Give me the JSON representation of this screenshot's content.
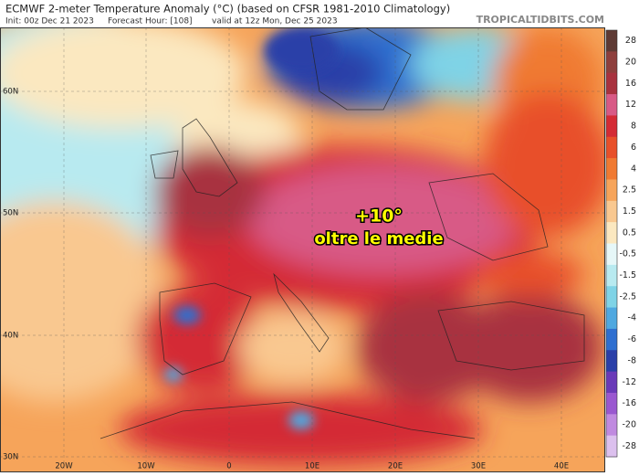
{
  "header": {
    "title": "ECMWF 2-meter Temperature Anomaly (°C) (based on CFSR 1981-2010 Climatology)",
    "init": "Init: 00z Dec 21 2023",
    "forecast_hour": "Forecast Hour: [108]",
    "valid": "valid at 12z Mon, Dec 25 2023",
    "watermark": "TROPICALTIDBITS.COM"
  },
  "annotation": {
    "line1": "+10°",
    "line2": "oltre le medie"
  },
  "lat_labels": [
    "60N",
    "50N",
    "40N",
    "30N"
  ],
  "lon_labels": [
    "20W",
    "10W",
    "0",
    "10E",
    "20E",
    "30E",
    "40E"
  ],
  "colorbar": [
    {
      "label": 28,
      "color": "#5e3a34"
    },
    {
      "label": 20,
      "color": "#8e3f3d"
    },
    {
      "label": 16,
      "color": "#a8323f"
    },
    {
      "label": 12,
      "color": "#d85a86"
    },
    {
      "label": 8,
      "color": "#d42b35"
    },
    {
      "label": 6,
      "color": "#e8502a"
    },
    {
      "label": 4,
      "color": "#f07a32"
    },
    {
      "label": 2.5,
      "color": "#f6a45a"
    },
    {
      "label": 1.5,
      "color": "#f9c890"
    },
    {
      "label": 0.5,
      "color": "#fbe8c0"
    },
    {
      "label": -0.5,
      "color": "#e6f7f8"
    },
    {
      "label": -1.5,
      "color": "#b8eaf0"
    },
    {
      "label": -2.5,
      "color": "#7fd3e6"
    },
    {
      "label": -4,
      "color": "#4fa8e0"
    },
    {
      "label": -6,
      "color": "#2f6fd0"
    },
    {
      "label": -8,
      "color": "#2a3fa8"
    },
    {
      "label": -12,
      "color": "#6a3ab8"
    },
    {
      "label": -16,
      "color": "#9a58d0"
    },
    {
      "label": -20,
      "color": "#c08ae0"
    },
    {
      "label": -28,
      "color": "#dcc0ee"
    }
  ]
}
